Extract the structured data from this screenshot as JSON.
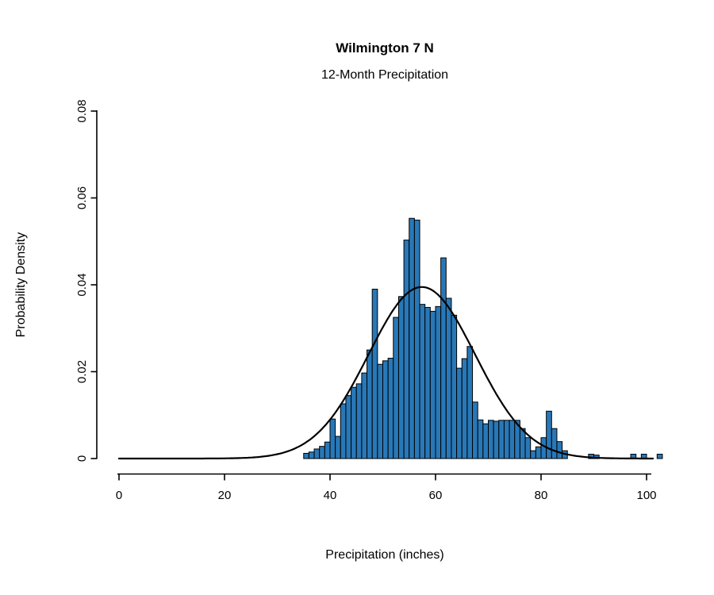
{
  "chart_data": {
    "type": "bar",
    "chart_kind": "histogram_with_normal_curve",
    "title": "Wilmington 7 N",
    "subtitle": "12-Month Precipitation",
    "xlabel": "Precipitation (inches)",
    "ylabel": "Probability Density",
    "xlim": [
      0,
      103
    ],
    "ylim": [
      0,
      0.08
    ],
    "grid": false,
    "legend": "none",
    "x_ticks": [
      0,
      20,
      40,
      60,
      80,
      100
    ],
    "y_ticks": [
      0,
      0.02,
      0.04,
      0.06,
      0.08
    ],
    "y_tick_labels": [
      "0",
      "0.02",
      "0.04",
      "0.06",
      "0.08"
    ],
    "bin_width": 1,
    "bars": [
      {
        "x": 35,
        "density": 0.0012
      },
      {
        "x": 36,
        "density": 0.0015
      },
      {
        "x": 37,
        "density": 0.0022
      },
      {
        "x": 38,
        "density": 0.0028
      },
      {
        "x": 39,
        "density": 0.0038
      },
      {
        "x": 40,
        "density": 0.0091
      },
      {
        "x": 41,
        "density": 0.0051
      },
      {
        "x": 42,
        "density": 0.0126
      },
      {
        "x": 43,
        "density": 0.0145
      },
      {
        "x": 44,
        "density": 0.0164
      },
      {
        "x": 45,
        "density": 0.0172
      },
      {
        "x": 46,
        "density": 0.0197
      },
      {
        "x": 47,
        "density": 0.025
      },
      {
        "x": 48,
        "density": 0.039
      },
      {
        "x": 49,
        "density": 0.0217
      },
      {
        "x": 50,
        "density": 0.0225
      },
      {
        "x": 51,
        "density": 0.0231
      },
      {
        "x": 52,
        "density": 0.0325
      },
      {
        "x": 53,
        "density": 0.0373
      },
      {
        "x": 54,
        "density": 0.0503
      },
      {
        "x": 55,
        "density": 0.0553
      },
      {
        "x": 56,
        "density": 0.0549
      },
      {
        "x": 57,
        "density": 0.0355
      },
      {
        "x": 58,
        "density": 0.0348
      },
      {
        "x": 59,
        "density": 0.0339
      },
      {
        "x": 60,
        "density": 0.035
      },
      {
        "x": 61,
        "density": 0.0462
      },
      {
        "x": 62,
        "density": 0.0369
      },
      {
        "x": 63,
        "density": 0.033
      },
      {
        "x": 64,
        "density": 0.0208
      },
      {
        "x": 65,
        "density": 0.023
      },
      {
        "x": 66,
        "density": 0.0258
      },
      {
        "x": 67,
        "density": 0.013
      },
      {
        "x": 68,
        "density": 0.0089
      },
      {
        "x": 69,
        "density": 0.008
      },
      {
        "x": 70,
        "density": 0.0088
      },
      {
        "x": 71,
        "density": 0.0086
      },
      {
        "x": 72,
        "density": 0.0088
      },
      {
        "x": 73,
        "density": 0.0088
      },
      {
        "x": 74,
        "density": 0.0088
      },
      {
        "x": 75,
        "density": 0.0088
      },
      {
        "x": 76,
        "density": 0.0069
      },
      {
        "x": 77,
        "density": 0.0048
      },
      {
        "x": 78,
        "density": 0.0018
      },
      {
        "x": 79,
        "density": 0.0027
      },
      {
        "x": 80,
        "density": 0.0048
      },
      {
        "x": 81,
        "density": 0.0109
      },
      {
        "x": 82,
        "density": 0.0069
      },
      {
        "x": 83,
        "density": 0.0039
      },
      {
        "x": 84,
        "density": 0.0018
      },
      {
        "x": 89,
        "density": 0.001
      },
      {
        "x": 90,
        "density": 0.0008
      },
      {
        "x": 97,
        "density": 0.001
      },
      {
        "x": 99,
        "density": 0.001
      },
      {
        "x": 102,
        "density": 0.001
      }
    ],
    "normal_curve": {
      "mean": 57.4,
      "sd": 10.1,
      "peak_density": 0.0395
    },
    "colors": {
      "bar_fill": "#2878b8",
      "bar_stroke": "#000000",
      "curve": "#000000",
      "axis": "#000000",
      "background": "#ffffff"
    }
  }
}
